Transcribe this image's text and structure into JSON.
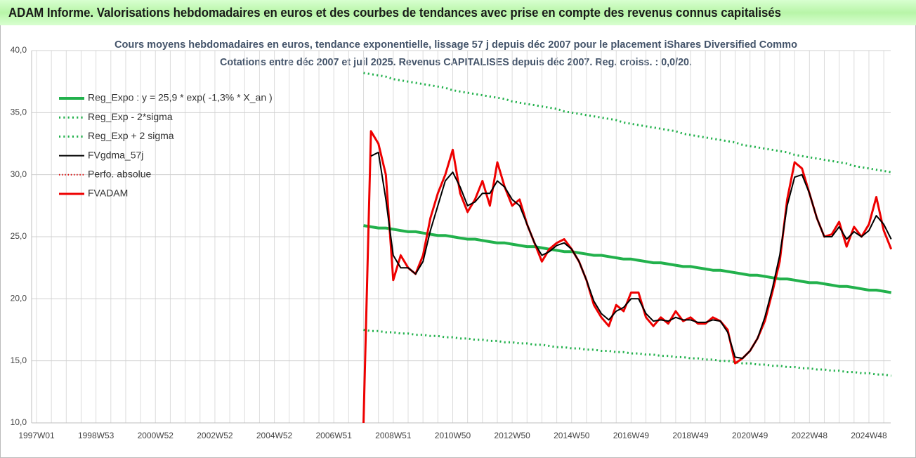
{
  "chart_data": {
    "type": "line",
    "banner": "ADAM Informe. Valorisations hebdomadaires en euros et des courbes de tendances avec prise en compte des revenus connus capitalisés",
    "title": "Cours moyens hebdomadaires en euros, tendance exponentielle, lissage 57 j depuis déc 2007 pour le placement iShares Diversified Commo",
    "subtitle": "Cotations entre déc 2007 et juil 2025. Revenus CAPITALISES depuis déc 2007. Reg. croiss. : 0,0/20.",
    "categories": [
      "1997W01",
      null,
      null,
      null,
      null,
      null,
      null,
      null,
      "1998W53",
      null,
      null,
      null,
      null,
      null,
      null,
      null,
      "2000W52",
      null,
      null,
      null,
      null,
      null,
      null,
      null,
      "2002W52",
      null,
      null,
      null,
      null,
      null,
      null,
      null,
      "2004W52",
      null,
      null,
      null,
      null,
      null,
      null,
      null,
      "2006W51",
      null,
      null,
      null,
      null,
      null,
      null,
      null,
      "2008W51",
      null,
      null,
      null,
      null,
      null,
      null,
      null,
      "2010W50",
      null,
      null,
      null,
      null,
      null,
      null,
      null,
      "2012W50",
      null,
      null,
      null,
      null,
      null,
      null,
      null,
      "2014W50",
      null,
      null,
      null,
      null,
      null,
      null,
      null,
      "2016W49",
      null,
      null,
      null,
      null,
      null,
      null,
      null,
      "2018W49",
      null,
      null,
      null,
      null,
      null,
      null,
      null,
      "2020W49",
      null,
      null,
      null,
      null,
      null,
      null,
      null,
      "2022W48",
      null,
      null,
      null,
      null,
      null,
      null,
      null,
      "2024W48",
      null,
      null,
      null
    ],
    "ylim": [
      10,
      40
    ],
    "yticks": [
      {
        "value": 10,
        "label": "10,0"
      },
      {
        "value": 15,
        "label": "15,0"
      },
      {
        "value": 20,
        "label": "20,0"
      },
      {
        "value": 25,
        "label": "25,0"
      },
      {
        "value": 30,
        "label": "30,0"
      },
      {
        "value": 35,
        "label": "35,0"
      },
      {
        "value": 40,
        "label": "40,0"
      }
    ],
    "grid": true,
    "legend": "upper left",
    "series": [
      {
        "name": "Reg_Expo : y = 25,9 * exp( -1,3% *  X_an )",
        "color": "#22b14c",
        "line_style": "solid",
        "width": 4,
        "values": [
          null,
          null,
          null,
          null,
          null,
          null,
          null,
          null,
          null,
          null,
          null,
          null,
          null,
          null,
          null,
          null,
          null,
          null,
          null,
          null,
          null,
          null,
          null,
          null,
          null,
          null,
          null,
          null,
          null,
          null,
          null,
          null,
          null,
          null,
          null,
          null,
          null,
          null,
          null,
          null,
          null,
          null,
          null,
          null,
          25.9,
          25.8,
          25.7,
          25.7,
          25.6,
          25.5,
          25.4,
          25.4,
          25.3,
          25.2,
          25.1,
          25.1,
          25.0,
          24.9,
          24.8,
          24.8,
          24.7,
          24.6,
          24.5,
          24.5,
          24.4,
          24.3,
          24.2,
          24.2,
          24.1,
          24.0,
          23.9,
          23.8,
          23.8,
          23.7,
          23.6,
          23.5,
          23.5,
          23.4,
          23.3,
          23.2,
          23.2,
          23.1,
          23.0,
          22.9,
          22.9,
          22.8,
          22.7,
          22.6,
          22.6,
          22.5,
          22.4,
          22.3,
          22.3,
          22.2,
          22.1,
          22.0,
          21.9,
          21.9,
          21.8,
          21.7,
          21.6,
          21.6,
          21.5,
          21.4,
          21.3,
          21.3,
          21.2,
          21.1,
          21.0,
          21.0,
          20.9,
          20.8,
          20.7,
          20.7,
          20.6,
          20.5
        ]
      },
      {
        "name": "Reg_Exp - 2*sigma",
        "color": "#22b14c",
        "line_style": "dotted",
        "width": 3,
        "values": [
          null,
          null,
          null,
          null,
          null,
          null,
          null,
          null,
          null,
          null,
          null,
          null,
          null,
          null,
          null,
          null,
          null,
          null,
          null,
          null,
          null,
          null,
          null,
          null,
          null,
          null,
          null,
          null,
          null,
          null,
          null,
          null,
          null,
          null,
          null,
          null,
          null,
          null,
          null,
          null,
          null,
          null,
          null,
          null,
          17.5,
          17.4,
          17.4,
          17.3,
          17.3,
          17.2,
          17.2,
          17.1,
          17.1,
          17.0,
          17.0,
          16.9,
          16.9,
          16.8,
          16.8,
          16.7,
          16.7,
          16.6,
          16.6,
          16.5,
          16.5,
          16.4,
          16.4,
          16.3,
          16.3,
          16.2,
          16.1,
          16.1,
          16.0,
          16.0,
          15.9,
          15.9,
          15.8,
          15.8,
          15.7,
          15.7,
          15.6,
          15.6,
          15.5,
          15.5,
          15.4,
          15.4,
          15.3,
          15.3,
          15.2,
          15.2,
          15.1,
          15.1,
          15.0,
          15.0,
          14.9,
          14.8,
          14.8,
          14.7,
          14.7,
          14.6,
          14.6,
          14.5,
          14.5,
          14.4,
          14.4,
          14.3,
          14.3,
          14.2,
          14.2,
          14.1,
          14.1,
          14.0,
          14.0,
          13.9,
          13.9,
          13.8
        ]
      },
      {
        "name": "Reg_Exp + 2 sigma",
        "color": "#22b14c",
        "line_style": "dotted",
        "width": 3,
        "values": [
          null,
          null,
          null,
          null,
          null,
          null,
          null,
          null,
          null,
          null,
          null,
          null,
          null,
          null,
          null,
          null,
          null,
          null,
          null,
          null,
          null,
          null,
          null,
          null,
          null,
          null,
          null,
          null,
          null,
          null,
          null,
          null,
          null,
          null,
          null,
          null,
          null,
          null,
          null,
          null,
          null,
          null,
          null,
          null,
          38.2,
          38.1,
          38.0,
          37.9,
          37.7,
          37.6,
          37.5,
          37.4,
          37.3,
          37.2,
          37.1,
          37.0,
          36.8,
          36.7,
          36.6,
          36.5,
          36.4,
          36.3,
          36.2,
          36.1,
          35.9,
          35.8,
          35.7,
          35.6,
          35.5,
          35.4,
          35.3,
          35.1,
          35.0,
          34.9,
          34.8,
          34.7,
          34.6,
          34.5,
          34.4,
          34.2,
          34.1,
          34.0,
          33.9,
          33.8,
          33.7,
          33.6,
          33.5,
          33.3,
          33.2,
          33.1,
          33.0,
          32.9,
          32.8,
          32.7,
          32.6,
          32.4,
          32.3,
          32.2,
          32.1,
          32.0,
          31.9,
          31.8,
          31.6,
          31.5,
          31.4,
          31.3,
          31.2,
          31.1,
          31.0,
          30.9,
          30.7,
          30.6,
          30.5,
          30.4,
          30.3,
          30.2
        ]
      },
      {
        "name": "FVgdma_57j",
        "color": "#000000",
        "line_style": "solid",
        "width": 2,
        "values": [
          null,
          null,
          null,
          null,
          null,
          null,
          null,
          null,
          null,
          null,
          null,
          null,
          null,
          null,
          null,
          null,
          null,
          null,
          null,
          null,
          null,
          null,
          null,
          null,
          null,
          null,
          null,
          null,
          null,
          null,
          null,
          null,
          null,
          null,
          null,
          null,
          null,
          null,
          null,
          null,
          null,
          null,
          null,
          null,
          null,
          31.5,
          31.8,
          28.0,
          23.5,
          22.5,
          22.5,
          22.0,
          23.0,
          25.5,
          27.5,
          29.5,
          30.2,
          29.0,
          27.5,
          27.8,
          28.5,
          28.5,
          29.5,
          29.0,
          28.0,
          27.5,
          26.0,
          24.5,
          23.5,
          23.8,
          24.3,
          24.5,
          24.0,
          23.0,
          21.5,
          19.8,
          18.8,
          18.3,
          19.0,
          19.3,
          20.0,
          20.0,
          18.8,
          18.2,
          18.3,
          18.2,
          18.5,
          18.3,
          18.3,
          18.1,
          18.1,
          18.3,
          18.2,
          17.3,
          15.3,
          15.2,
          15.8,
          16.8,
          18.5,
          20.8,
          23.5,
          27.5,
          29.8,
          30.0,
          28.5,
          26.5,
          25.0,
          25.0,
          25.8,
          24.8,
          25.4,
          25.0,
          25.5,
          26.7,
          26.0,
          24.8
        ]
      },
      {
        "name": "Perfo. absolue",
        "color": "#e00000",
        "line_style": "dotted",
        "width": 2,
        "values": [
          null,
          null,
          null,
          null,
          null,
          null,
          null,
          null,
          null,
          null,
          null,
          null,
          null,
          null,
          null,
          null,
          null,
          null,
          null,
          null,
          null,
          null,
          null,
          null,
          null,
          null,
          null,
          null,
          null,
          null,
          null,
          null,
          null,
          null,
          null,
          null,
          null,
          null,
          null,
          null,
          null,
          null,
          null,
          null,
          10.0,
          33.5,
          32.5,
          30.0,
          21.5,
          23.5,
          22.5,
          22.0,
          23.5,
          26.5,
          28.5,
          30.0,
          32.0,
          28.5,
          27.0,
          28.0,
          29.5,
          27.5,
          31.0,
          29.0,
          27.5,
          28.0,
          26.0,
          24.5,
          23.0,
          24.0,
          24.5,
          24.8,
          24.0,
          23.0,
          21.5,
          19.5,
          18.5,
          17.8,
          19.5,
          19.0,
          20.5,
          20.5,
          18.5,
          17.8,
          18.5,
          18.0,
          19.0,
          18.2,
          18.5,
          18.0,
          18.0,
          18.5,
          18.2,
          17.5,
          14.8,
          15.2,
          15.8,
          16.8,
          18.2,
          20.5,
          23.0,
          28.0,
          31.0,
          30.5,
          28.5,
          26.5,
          25.0,
          25.2,
          26.2,
          24.2,
          25.8,
          25.0,
          26.0,
          28.2,
          25.5,
          24.0
        ]
      },
      {
        "name": "FVADAM",
        "color": "#ee0000",
        "line_style": "solid",
        "width": 3,
        "values": [
          null,
          null,
          null,
          null,
          null,
          null,
          null,
          null,
          null,
          null,
          null,
          null,
          null,
          null,
          null,
          null,
          null,
          null,
          null,
          null,
          null,
          null,
          null,
          null,
          null,
          null,
          null,
          null,
          null,
          null,
          null,
          null,
          null,
          null,
          null,
          null,
          null,
          null,
          null,
          null,
          null,
          null,
          null,
          null,
          10.0,
          33.5,
          32.5,
          30.0,
          21.5,
          23.5,
          22.5,
          22.0,
          23.5,
          26.5,
          28.5,
          30.0,
          32.0,
          28.5,
          27.0,
          28.0,
          29.5,
          27.5,
          31.0,
          29.0,
          27.5,
          28.0,
          26.0,
          24.5,
          23.0,
          24.0,
          24.5,
          24.8,
          24.0,
          23.0,
          21.5,
          19.5,
          18.5,
          17.8,
          19.5,
          19.0,
          20.5,
          20.5,
          18.5,
          17.8,
          18.5,
          18.0,
          19.0,
          18.2,
          18.5,
          18.0,
          18.0,
          18.5,
          18.2,
          17.5,
          14.8,
          15.2,
          15.8,
          16.8,
          18.2,
          20.5,
          23.0,
          28.0,
          31.0,
          30.5,
          28.5,
          26.5,
          25.0,
          25.2,
          26.2,
          24.2,
          25.8,
          25.0,
          26.0,
          28.2,
          25.5,
          24.0
        ]
      }
    ]
  }
}
